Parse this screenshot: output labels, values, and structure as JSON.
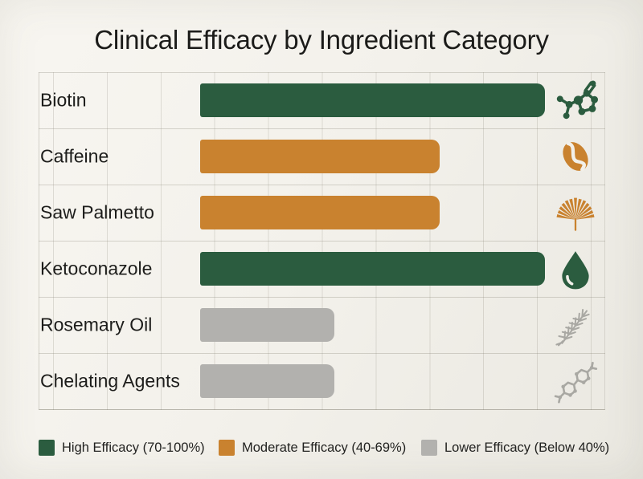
{
  "title": "Clinical Efficacy by Ingredient Category",
  "colors": {
    "high": "#2b5c3f",
    "moderate": "#c9822f",
    "lower": "#b2b1ae",
    "icon_gray": "#a9a8a3",
    "background": "#f2f0ea",
    "grid": "#d9d6cd",
    "text": "#1d1d1b"
  },
  "rows": [
    {
      "label": "Biotin",
      "value_pct": 85,
      "level": "high",
      "icon": "molecule-icon"
    },
    {
      "label": "Caffeine",
      "value_pct": 59,
      "level": "moderate",
      "icon": "coffee-bean-icon"
    },
    {
      "label": "Saw Palmetto",
      "value_pct": 59,
      "level": "moderate",
      "icon": "palm-leaf-icon"
    },
    {
      "label": "Ketoconazole",
      "value_pct": 85,
      "level": "high",
      "icon": "droplet-icon"
    },
    {
      "label": "Rosemary Oil",
      "value_pct": 33,
      "level": "lower",
      "icon": "rosemary-sprig-icon"
    },
    {
      "label": "Chelating Agents",
      "value_pct": 33,
      "level": "lower",
      "icon": "molecule-chain-icon"
    }
  ],
  "legend": {
    "items": [
      {
        "label": "High Efficacy (70-100%)",
        "level": "high"
      },
      {
        "label": "Moderate Efficacy (40-69%)",
        "level": "moderate"
      },
      {
        "label": "Lower Efficacy (Below 40%)",
        "level": "lower"
      }
    ]
  },
  "chart_data": {
    "type": "bar",
    "orientation": "horizontal",
    "title": "Clinical Efficacy by Ingredient Category",
    "categories": [
      "Biotin",
      "Caffeine",
      "Saw Palmetto",
      "Ketoconazole",
      "Rosemary Oil",
      "Chelating Agents"
    ],
    "values": [
      85,
      59,
      59,
      85,
      33,
      33
    ],
    "value_unit": "percent (estimated from bar length; no numeric labels shown)",
    "efficacy_levels": [
      "high",
      "moderate",
      "moderate",
      "high",
      "lower",
      "lower"
    ],
    "xlabel": "",
    "ylabel": "",
    "xlim": [
      0,
      100
    ],
    "grid": true,
    "legend_position": "bottom",
    "legend_entries": [
      "High Efficacy (70-100%)",
      "Moderate Efficacy (40-69%)",
      "Lower Efficacy (Below 40%)"
    ]
  }
}
